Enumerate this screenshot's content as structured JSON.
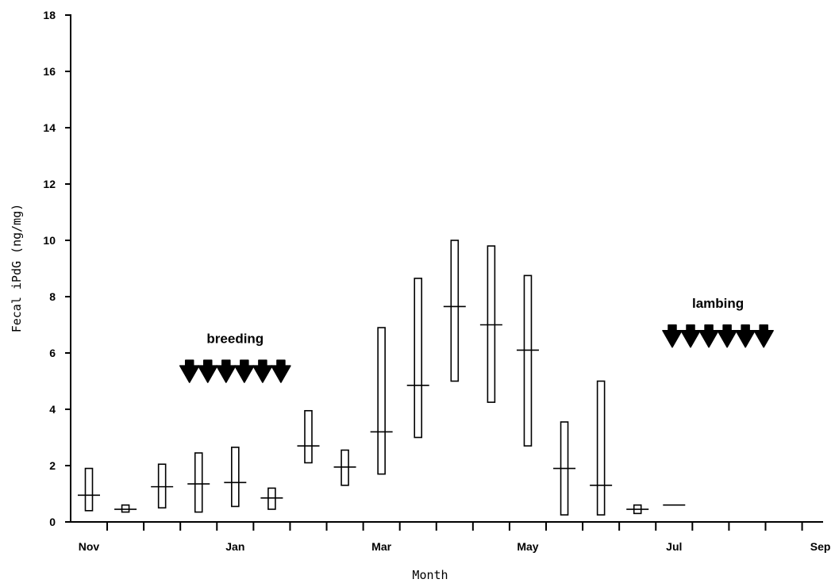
{
  "chart_data": {
    "type": "box",
    "title": "",
    "xlabel": "Month",
    "ylabel": "Fecal iPdG (ng/mg)",
    "ylim": [
      0,
      18
    ],
    "yticks": [
      0,
      2,
      4,
      6,
      8,
      10,
      12,
      14,
      16,
      18
    ],
    "x_tick_labels": [
      {
        "label": "Nov",
        "pos": 0
      },
      {
        "label": "Jan",
        "pos": 4
      },
      {
        "label": "Mar",
        "pos": 8
      },
      {
        "label": "May",
        "pos": 12
      },
      {
        "label": "Jul",
        "pos": 16
      },
      {
        "label": "Sep",
        "pos": 20
      }
    ],
    "x_minor_ticks": [
      0,
      1,
      2,
      3,
      4,
      5,
      6,
      7,
      8,
      9,
      10,
      11,
      12,
      13,
      14,
      15,
      16,
      17,
      18,
      19,
      20
    ],
    "grid": false,
    "series": [
      {
        "points": [
          {
            "pos": 0,
            "low": 0.4,
            "high": 1.9,
            "median": 0.95
          },
          {
            "pos": 1,
            "low": 0.35,
            "high": 0.6,
            "median": 0.45
          },
          {
            "pos": 2,
            "low": 0.5,
            "high": 2.05,
            "median": 1.25
          },
          {
            "pos": 3,
            "low": 0.35,
            "high": 2.45,
            "median": 1.35
          },
          {
            "pos": 4,
            "low": 0.55,
            "high": 2.65,
            "median": 1.4
          },
          {
            "pos": 5,
            "low": 0.45,
            "high": 1.2,
            "median": 0.85
          },
          {
            "pos": 6,
            "low": 2.1,
            "high": 3.95,
            "median": 2.7
          },
          {
            "pos": 7,
            "low": 1.3,
            "high": 2.55,
            "median": 1.95
          },
          {
            "pos": 8,
            "low": 1.7,
            "high": 6.9,
            "median": 3.2
          },
          {
            "pos": 9,
            "low": 3.0,
            "high": 8.65,
            "median": 4.85
          },
          {
            "pos": 10,
            "low": 5.0,
            "high": 10.0,
            "median": 7.65
          },
          {
            "pos": 11,
            "low": 4.25,
            "high": 9.8,
            "median": 7.0
          },
          {
            "pos": 12,
            "low": 2.7,
            "high": 8.75,
            "median": 6.1
          },
          {
            "pos": 13,
            "low": 0.25,
            "high": 3.55,
            "median": 1.9
          },
          {
            "pos": 14,
            "low": 0.25,
            "high": 5.0,
            "median": 1.3
          },
          {
            "pos": 15,
            "low": 0.3,
            "high": 0.6,
            "median": 0.45
          },
          {
            "pos": 16,
            "low": 0.6,
            "high": 0.6,
            "median": 0.6
          }
        ]
      }
    ],
    "annotations": [
      {
        "text": "breeding",
        "arrow_count": 6,
        "arrow_direction": "down",
        "arrow_start_pos": 2.75,
        "arrow_end_pos": 5.25,
        "arrow_level": 5.35,
        "text_level": 6.35
      },
      {
        "text": "lambing",
        "arrow_count": 6,
        "arrow_direction": "down",
        "arrow_start_pos": 15.95,
        "arrow_end_pos": 18.45,
        "arrow_level": 6.6,
        "text_level": 7.6
      }
    ]
  }
}
